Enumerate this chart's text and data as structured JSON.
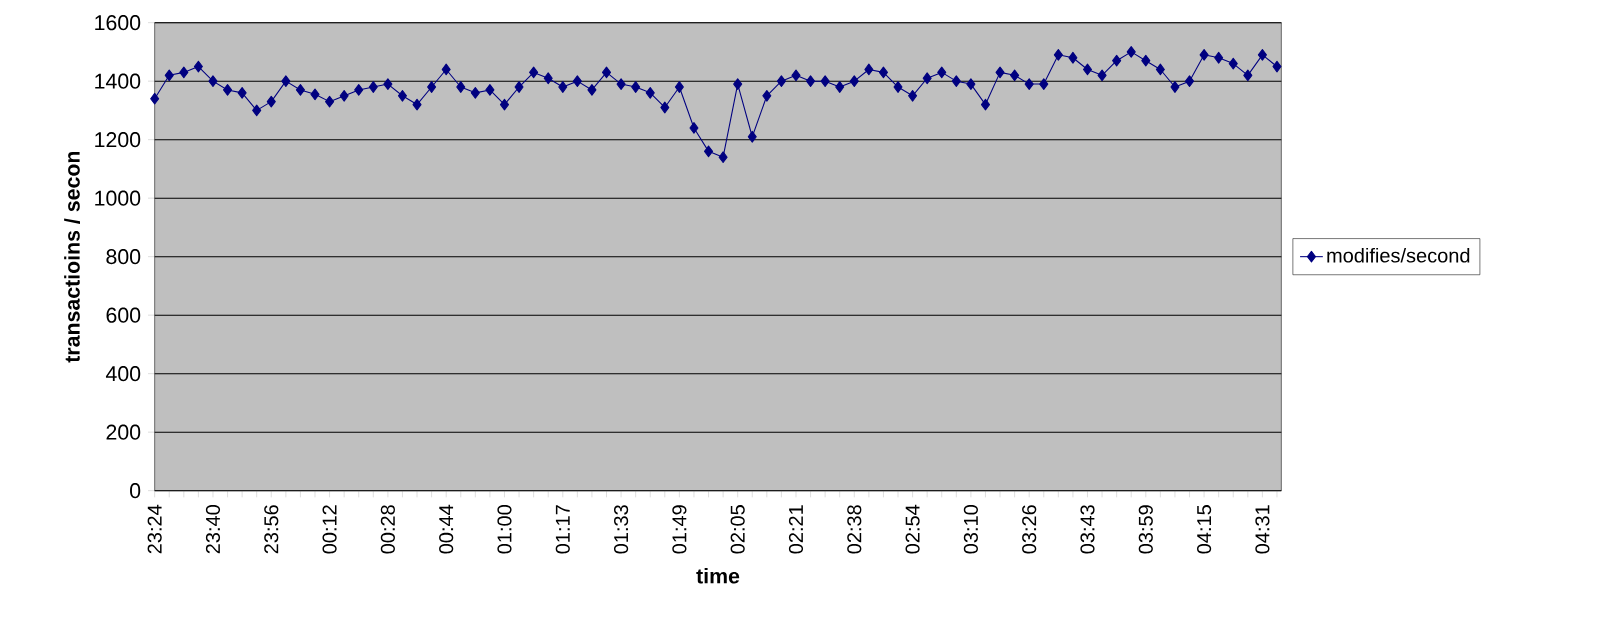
{
  "chart_data": {
    "type": "line",
    "xlabel": "time",
    "ylabel": "transactioins / secon",
    "categories": [
      "23:24",
      null,
      null,
      null,
      "23:40",
      null,
      null,
      null,
      "23:56",
      null,
      null,
      null,
      "00:12",
      null,
      null,
      null,
      "00:28",
      null,
      null,
      null,
      "00:44",
      null,
      null,
      null,
      "01:00",
      null,
      null,
      null,
      "01:17",
      null,
      null,
      null,
      "01:33",
      null,
      null,
      null,
      "01:49",
      null,
      null,
      null,
      "02:05",
      null,
      null,
      null,
      "02:21",
      null,
      null,
      null,
      "02:38",
      null,
      null,
      null,
      "02:54",
      null,
      null,
      null,
      "03:10",
      null,
      null,
      null,
      "03:26",
      null,
      null,
      null,
      "03:43",
      null,
      null,
      null,
      "03:59",
      null,
      null,
      null,
      "04:15",
      null,
      null,
      null,
      "04:31",
      null
    ],
    "series": [
      {
        "name": "modifies/second",
        "color": "#000080",
        "values": [
          1340,
          1420,
          1430,
          1450,
          1400,
          1370,
          1360,
          1300,
          1330,
          1400,
          1370,
          1355,
          1330,
          1350,
          1370,
          1380,
          1390,
          1350,
          1320,
          1380,
          1440,
          1380,
          1360,
          1370,
          1320,
          1380,
          1430,
          1410,
          1380,
          1400,
          1370,
          1430,
          1390,
          1380,
          1360,
          1310,
          1380,
          1240,
          1160,
          1140,
          1390,
          1210,
          1350,
          1400,
          1420,
          1400,
          1400,
          1380,
          1400,
          1440,
          1430,
          1380,
          1350,
          1410,
          1430,
          1400,
          1390,
          1320,
          1430,
          1420,
          1390,
          1390,
          1490,
          1480,
          1440,
          1420,
          1470,
          1500,
          1470,
          1440,
          1380,
          1400,
          1490,
          1480,
          1460,
          1420,
          1490,
          1450
        ]
      }
    ],
    "ylim": [
      0,
      1600
    ],
    "yticks": [
      0,
      200,
      400,
      600,
      800,
      1000,
      1200,
      1400,
      1600
    ],
    "grid": "y",
    "legend": "right",
    "marker": "diamond",
    "line_style": "solid"
  }
}
